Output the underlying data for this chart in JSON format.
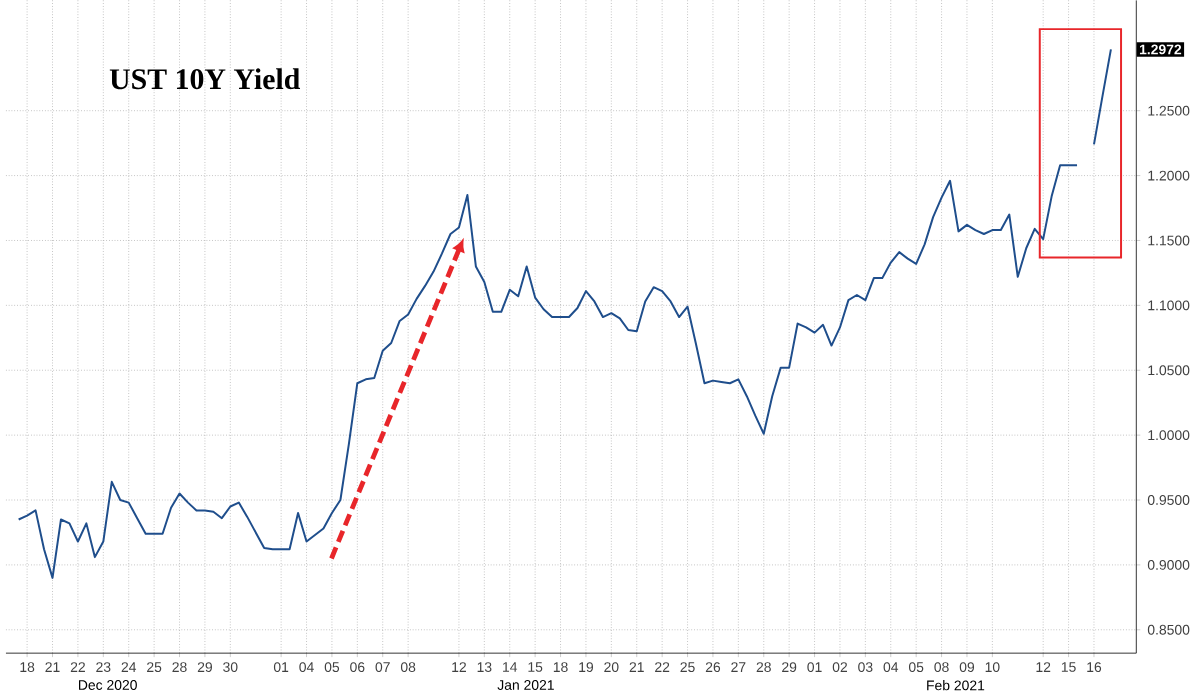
{
  "chart_data": {
    "type": "line",
    "title": "UST 10Y Yield",
    "categories": [
      null,
      "18",
      null,
      null,
      "21",
      null,
      null,
      "22",
      null,
      null,
      "23",
      null,
      null,
      "24",
      null,
      null,
      "25",
      null,
      null,
      "28",
      null,
      null,
      "29",
      null,
      null,
      "30",
      null,
      null,
      null,
      null,
      null,
      "01",
      null,
      null,
      "04",
      null,
      null,
      "05",
      null,
      null,
      "06",
      null,
      null,
      "07",
      null,
      null,
      "08",
      null,
      null,
      null,
      null,
      null,
      "12",
      null,
      null,
      "13",
      null,
      null,
      "14",
      null,
      null,
      "15",
      null,
      null,
      "18",
      null,
      null,
      "19",
      null,
      null,
      "20",
      null,
      null,
      "21",
      null,
      null,
      "22",
      null,
      null,
      "25",
      null,
      null,
      "26",
      null,
      null,
      "27",
      null,
      null,
      "28",
      null,
      null,
      "29",
      null,
      null,
      "01",
      null,
      null,
      "02",
      null,
      null,
      "03",
      null,
      null,
      "04",
      null,
      null,
      "05",
      null,
      null,
      "08",
      null,
      null,
      "09",
      null,
      null,
      "10",
      null,
      null,
      null,
      null,
      null,
      "12",
      null,
      null,
      "15",
      null,
      null,
      "16",
      null,
      null
    ],
    "ylim": [
      0.832,
      1.335
    ],
    "yticks": [
      {
        "value": 0.85,
        "label": "0.8500"
      },
      {
        "value": 0.9,
        "label": "0.9000"
      },
      {
        "value": 0.95,
        "label": "0.9500"
      },
      {
        "value": 1.0,
        "label": "1.0000"
      },
      {
        "value": 1.05,
        "label": "1.0500"
      },
      {
        "value": 1.1,
        "label": "1.1000"
      },
      {
        "value": 1.15,
        "label": "1.1500"
      },
      {
        "value": 1.2,
        "label": "1.2000"
      },
      {
        "value": 1.25,
        "label": "1.2500"
      }
    ],
    "grid": true,
    "marker": "none",
    "series": [
      {
        "color": "#1f4e8c",
        "line_style": "solid",
        "values": [
          0.935,
          0.938,
          0.942,
          0.912,
          0.89,
          0.935,
          0.932,
          0.918,
          0.932,
          0.906,
          0.918,
          0.964,
          0.95,
          0.948,
          0.936,
          0.924,
          0.924,
          0.924,
          0.944,
          0.955,
          0.948,
          0.942,
          0.942,
          0.941,
          0.936,
          0.945,
          0.948,
          0.937,
          0.925,
          0.913,
          0.912,
          0.912,
          0.912,
          0.94,
          0.918,
          0.923,
          0.928,
          0.94,
          0.95,
          0.993,
          1.04,
          1.043,
          1.044,
          1.065,
          1.071,
          1.088,
          1.093,
          1.105,
          1.115,
          1.126,
          1.14,
          1.155,
          1.16,
          1.185,
          1.13,
          1.118,
          1.095,
          1.095,
          1.112,
          1.107,
          1.13,
          1.106,
          1.097,
          1.091,
          1.091,
          1.091,
          1.098,
          1.111,
          1.103,
          1.091,
          1.094,
          1.09,
          1.081,
          1.08,
          1.103,
          1.114,
          1.111,
          1.103,
          1.091,
          1.099,
          1.07,
          1.04,
          1.042,
          1.041,
          1.04,
          1.043,
          1.03,
          1.015,
          1.001,
          1.03,
          1.052,
          1.052,
          1.086,
          1.083,
          1.079,
          1.085,
          1.069,
          1.083,
          1.104,
          1.108,
          1.104,
          1.121,
          1.121,
          1.133,
          1.141,
          1.136,
          1.132,
          1.147,
          1.168,
          1.183,
          1.196,
          1.157,
          1.162,
          1.158,
          1.155,
          1.158,
          1.158,
          1.17,
          1.122,
          1.144,
          1.159,
          1.151,
          1.184,
          1.208,
          1.208,
          1.208,
          null,
          1.224,
          1.261,
          1.2972
        ]
      }
    ],
    "annotations": [
      {
        "text": "1.2972",
        "y": 1.2972
      },
      "Dec 2020",
      "Jan 2021",
      "Feb 2021"
    ]
  }
}
